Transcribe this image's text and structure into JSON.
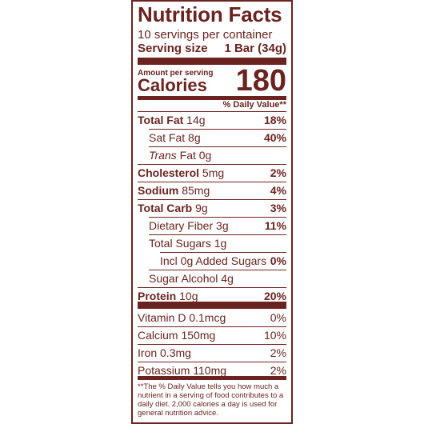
{
  "title": "Nutrition Facts",
  "servings_per_container": "10 servings per container",
  "serving_size_label": "Serving size",
  "serving_size_value": "1 Bar (34g)",
  "amount_per_serving": "Amount per serving",
  "calories_label": "Calories",
  "calories_value": "180",
  "dv_header": "% Daily Value**",
  "nutrients": [
    {
      "bold": "Total Fat",
      "amount": " 14g",
      "dv": "18%"
    },
    {
      "pre": "Sat Fat",
      "amount": " 8g",
      "dv": "40%"
    },
    {
      "ital": "Trans",
      "amount": " Fat 0g",
      "dv": ""
    },
    {
      "bold": "Cholesterol",
      "amount": " 5mg",
      "dv": "2%"
    },
    {
      "bold": "Sodium",
      "amount": " 85mg",
      "dv": "4%"
    },
    {
      "bold": "Total Carb",
      "amount": " 9g",
      "dv": "3%"
    },
    {
      "pre": "Dietary Fiber",
      "amount": " 3g",
      "dv": "11%"
    },
    {
      "pre": "Total Sugars",
      "amount": " 1g",
      "dv": ""
    },
    {
      "pre": "Incl 0g Added Sugars",
      "amount": "",
      "dv": "0%"
    },
    {
      "pre": "Sugar Alcohol",
      "amount": " 4g",
      "dv": ""
    },
    {
      "bold": "Protein",
      "amount": " 10g",
      "dv": "20%"
    }
  ],
  "vitamins": [
    {
      "name": "Vitamin D 0.1mcg",
      "dv": "0%"
    },
    {
      "name": "Calcium 150mg",
      "dv": "10%"
    },
    {
      "name": "Iron 0.3mg",
      "dv": "2%"
    },
    {
      "name": "Potassium 110mg",
      "dv": "2%"
    }
  ],
  "footnote": "**The % Daily Value tells you how much a nutrient in a serving of food contributes to a daily diet. 2,000 calories a day is used for general nutrition advice.",
  "colors": {
    "ink": "#6b2320",
    "background": "#ffffff"
  }
}
